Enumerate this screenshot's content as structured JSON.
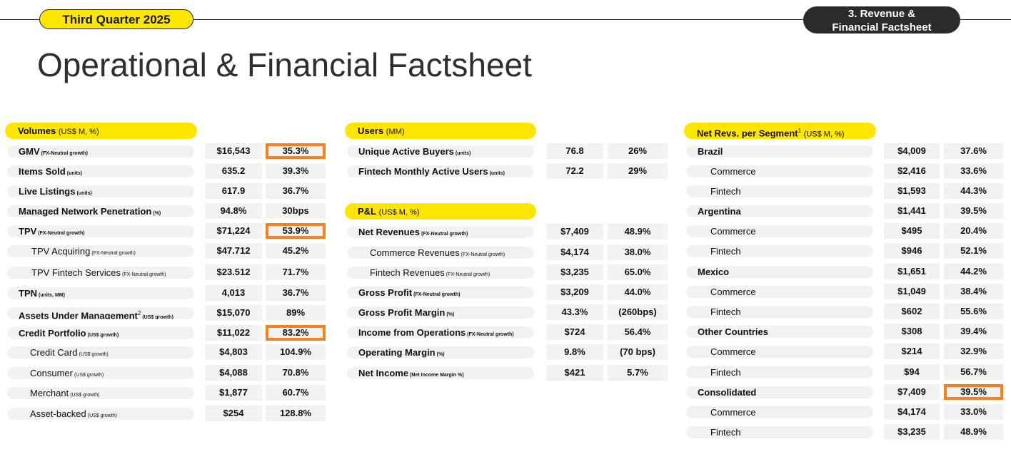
{
  "header": {
    "quarter": "Third Quarter 2025",
    "section_line1": "3. Revenue &",
    "section_line2": "Financial Factsheet",
    "title": "Operational & Financial Factsheet"
  },
  "accent_colors": {
    "pill": "#ffe600",
    "highlight": "#f58220",
    "dark_pill": "#2b2b2b"
  },
  "volumes": {
    "title": "Volumes",
    "unit": "(US$ M, %)",
    "rows": [
      {
        "label": "GMV",
        "note": "(FX-Neutral growth)",
        "value": "$16,543",
        "growth": "35.3%"
      },
      {
        "label": "Items Sold",
        "note": "(units)",
        "value": "635.2",
        "growth": "39.3%"
      },
      {
        "label": "Live Listings",
        "note": "(units)",
        "value": "617.9",
        "growth": "36.7%"
      },
      {
        "label": "Managed Network Penetration",
        "note": "(%)",
        "value": "94.8%",
        "growth": "30bps"
      },
      {
        "label": "TPV",
        "note": "(FX-Neutral growth)",
        "value": "$71,224",
        "growth": "53.9%"
      },
      {
        "label": "TPV Acquiring",
        "note": "(FX-Neutral growth)",
        "value": "$47.712",
        "growth": "45.2%"
      },
      {
        "label": "TPV Fintech Services",
        "note": "(FX-Neutral growth)",
        "value": "$23.512",
        "growth": "71.7%"
      },
      {
        "label": "TPN",
        "note": "(units, MM)",
        "value": "4,013",
        "growth": "36.7%"
      },
      {
        "label": "Assets Under Management",
        "sup": "2",
        "note": "(US$ growth)",
        "value": "$15,070",
        "growth": "89%"
      },
      {
        "label": "Credit Portfolio",
        "note": "(US$ growth)",
        "value": "$11,022",
        "growth": "83.2%"
      },
      {
        "label": "Credit Card",
        "note": "(US$ growth)",
        "value": "$4,803",
        "growth": "104.9%"
      },
      {
        "label": "Consumer",
        "note": "(US$ growth)",
        "value": "$4,088",
        "growth": "70.8%"
      },
      {
        "label": "Merchant",
        "note": "(US$ growth)",
        "value": "$1,877",
        "growth": "60.7%"
      },
      {
        "label": "Asset-backed",
        "note": "(US$ growth)",
        "value": "$254",
        "growth": "128.8%"
      }
    ]
  },
  "users": {
    "title": "Users",
    "unit": "(MM)",
    "rows": [
      {
        "label": "Unique Active Buyers",
        "note": "(units)",
        "value": "76.8",
        "growth": "26%"
      },
      {
        "label": "Fintech Monthly Active Users",
        "note": "(units)",
        "value": "72.2",
        "growth": "29%"
      }
    ]
  },
  "pnl": {
    "title": "P&L",
    "unit": "(US$ M, %)",
    "rows": [
      {
        "label": "Net Revenues",
        "note": "(FX-Neutral growth)",
        "value": "$7,409",
        "growth": "48.9%"
      },
      {
        "label": "Commerce Revenues",
        "note": "(FX-Neutral growth)",
        "value": "$4,174",
        "growth": "38.0%"
      },
      {
        "label": "Fintech Revenues",
        "note": "(FX-Neutral growth)",
        "value": "$3,235",
        "growth": "65.0%"
      },
      {
        "label": "Gross Profit",
        "note": "(FX-Neutral growth)",
        "value": "$3,209",
        "growth": "44.0%"
      },
      {
        "label": "Gross Profit Margin",
        "note": "(%)",
        "value": "43.3%",
        "growth": "(260bps)"
      },
      {
        "label": "Income from Operations",
        "note": "(FX-Neutral growth)",
        "value": "$724",
        "growth": "56.4%"
      },
      {
        "label": "Operating Margin",
        "note": "(%)",
        "value": "9.8%",
        "growth": "(70 bps)"
      },
      {
        "label": "Net Income",
        "note": "(Net Income Margin %)",
        "value": "$421",
        "growth": "5.7%"
      }
    ]
  },
  "segments": {
    "title": "Net Revs. per Segment",
    "sup": "1",
    "unit": "(US$ M, %)",
    "rows": [
      {
        "label": "Brazil",
        "value": "$4,009",
        "growth": "37.6%"
      },
      {
        "label": "Commerce",
        "value": "$2,416",
        "growth": "33.6%"
      },
      {
        "label": "Fintech",
        "value": "$1,593",
        "growth": "44.3%"
      },
      {
        "label": "Argentina",
        "value": "$1,441",
        "growth": "39.5%"
      },
      {
        "label": "Commerce",
        "value": "$495",
        "growth": "20.4%"
      },
      {
        "label": "Fintech",
        "value": "$946",
        "growth": "52.1%"
      },
      {
        "label": "Mexico",
        "value": "$1,651",
        "growth": "44.2%"
      },
      {
        "label": "Commerce",
        "value": "$1,049",
        "growth": "38.4%"
      },
      {
        "label": "Fintech",
        "value": "$602",
        "growth": "55.6%"
      },
      {
        "label": "Other Countries",
        "value": "$308",
        "growth": "39.4%"
      },
      {
        "label": "Commerce",
        "value": "$214",
        "growth": "32.9%"
      },
      {
        "label": "Fintech",
        "value": "$94",
        "growth": "56.7%"
      },
      {
        "label": "Consolidated",
        "value": "$7,409",
        "growth": "39.5%"
      },
      {
        "label": "Commerce",
        "value": "$4,174",
        "growth": "33.0%"
      },
      {
        "label": "Fintech",
        "value": "$3,235",
        "growth": "48.9%"
      }
    ]
  }
}
